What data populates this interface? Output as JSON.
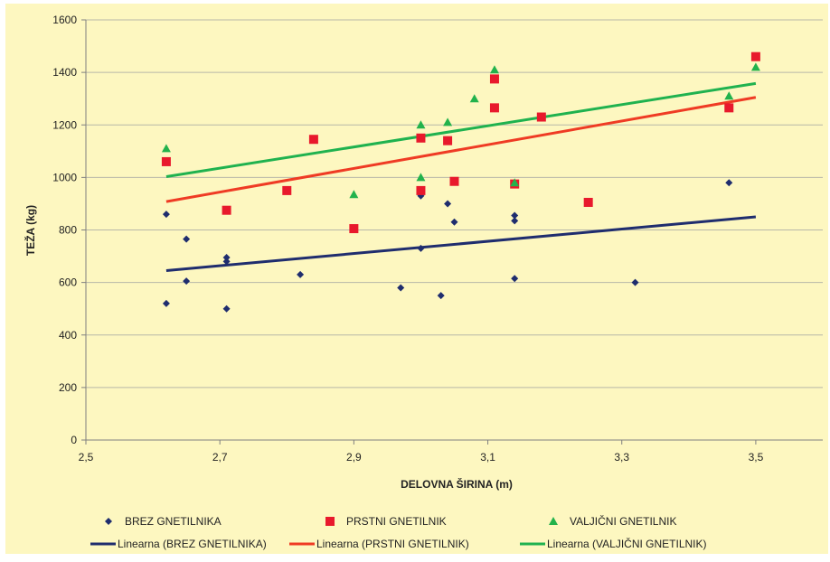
{
  "chart_data": {
    "type": "scatter",
    "title": "",
    "xlabel": "DELOVNA ŠIRINA (m)",
    "ylabel": "TEŽA (kg)",
    "xlim": [
      2.5,
      3.6
    ],
    "ylim": [
      0,
      1600
    ],
    "x_ticks": [
      "2,5",
      "2,7",
      "2,9",
      "3,1",
      "3,3",
      "3,5"
    ],
    "x_tick_values": [
      2.5,
      2.7,
      2.9,
      3.1,
      3.3,
      3.5
    ],
    "y_ticks": [
      "0",
      "200",
      "400",
      "600",
      "800",
      "1000",
      "1200",
      "1400",
      "1600"
    ],
    "y_tick_values": [
      0,
      200,
      400,
      600,
      800,
      1000,
      1200,
      1400,
      1600
    ],
    "grid": "horizontal",
    "legend_position": "bottom",
    "background": "#fdf7c0",
    "series": [
      {
        "name": "BREZ GNETILNIKA",
        "marker": "diamond",
        "color": "#1f2d6e",
        "points": [
          [
            2.62,
            860
          ],
          [
            2.62,
            520
          ],
          [
            2.65,
            765
          ],
          [
            2.65,
            605
          ],
          [
            2.71,
            695
          ],
          [
            2.71,
            680
          ],
          [
            2.71,
            500
          ],
          [
            2.82,
            630
          ],
          [
            2.97,
            580
          ],
          [
            3.0,
            930
          ],
          [
            3.0,
            730
          ],
          [
            3.03,
            550
          ],
          [
            3.04,
            900
          ],
          [
            3.05,
            830
          ],
          [
            3.14,
            855
          ],
          [
            3.14,
            835
          ],
          [
            3.14,
            615
          ],
          [
            3.32,
            600
          ],
          [
            3.46,
            980
          ]
        ]
      },
      {
        "name": "PRSTNI GNETILNIK",
        "marker": "square",
        "color": "#e8192c",
        "points": [
          [
            2.62,
            1060
          ],
          [
            2.71,
            875
          ],
          [
            2.8,
            950
          ],
          [
            2.84,
            1145
          ],
          [
            2.9,
            805
          ],
          [
            3.0,
            1150
          ],
          [
            3.0,
            950
          ],
          [
            3.04,
            1140
          ],
          [
            3.05,
            985
          ],
          [
            3.11,
            1375
          ],
          [
            3.11,
            1265
          ],
          [
            3.14,
            975
          ],
          [
            3.18,
            1230
          ],
          [
            3.25,
            905
          ],
          [
            3.46,
            1265
          ],
          [
            3.5,
            1460
          ]
        ]
      },
      {
        "name": "VALJIČNI GNETILNIK",
        "marker": "triangle",
        "color": "#22b24c",
        "points": [
          [
            2.62,
            1110
          ],
          [
            2.9,
            935
          ],
          [
            3.0,
            1200
          ],
          [
            3.0,
            1000
          ],
          [
            3.04,
            1210
          ],
          [
            3.08,
            1300
          ],
          [
            3.11,
            1410
          ],
          [
            3.14,
            980
          ],
          [
            3.46,
            1310
          ],
          [
            3.5,
            1420
          ]
        ]
      }
    ],
    "trendlines": [
      {
        "name": "Linearna (BREZ GNETILNIKA)",
        "color": "#1f2d6e",
        "x": [
          2.62,
          3.5
        ],
        "y": [
          645,
          850
        ]
      },
      {
        "name": "Linearna (PRSTNI GNETILNIK)",
        "color": "#ef3b24",
        "x": [
          2.62,
          3.5
        ],
        "y": [
          908,
          1305
        ]
      },
      {
        "name": "Linearna (VALJIČNI GNETILNIK)",
        "color": "#1fb24f",
        "x": [
          2.62,
          3.5
        ],
        "y": [
          1003,
          1358
        ]
      }
    ]
  }
}
